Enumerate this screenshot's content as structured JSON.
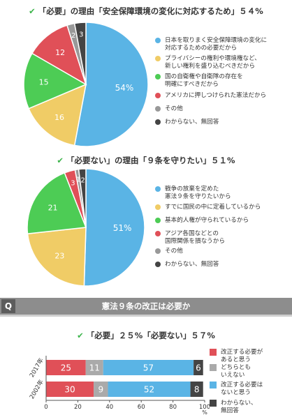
{
  "pie1": {
    "title": "「必要」の理由「安全保障環境の変化に対応するため」５４%",
    "legend": [
      {
        "label": "日本を取りまく安全保障環境の変化に\n対応するための必要だから",
        "color": "#5ab4e5"
      },
      {
        "label": "プライバシーの権利や環境権など、\n新しい権利を盛り込むべきだから",
        "color": "#f0cc66"
      },
      {
        "label": "国の自衛権や自衛隊の存在を\n明確にすべきだから",
        "color": "#4dcc55"
      },
      {
        "label": "アメリカに押しつけられた憲法だから",
        "color": "#e05058"
      },
      {
        "label": "その他",
        "color": "#999999"
      },
      {
        "label": "わからない、無回答",
        "color": "#444444"
      }
    ]
  },
  "pie2": {
    "title": "「必要ない」の理由「９条を守りたい」５１%",
    "legend": [
      {
        "label": "戦争の放棄を定めた\n憲法９条を守りたいから",
        "color": "#5ab4e5"
      },
      {
        "label": "すでに国民の中に定着しているから",
        "color": "#f0cc66"
      },
      {
        "label": "基本的人権が守られているから",
        "color": "#4dcc55"
      },
      {
        "label": "アジア各国などとの\n国際関係を損なうから",
        "color": "#e05058"
      },
      {
        "label": "その他",
        "color": "#999999"
      },
      {
        "label": "わからない、無回答",
        "color": "#444444"
      }
    ]
  },
  "question": {
    "badge": "Q",
    "text": "憲法９条の改正は必要か"
  },
  "bars": {
    "title": "「必要」２５%「必要ない」５７%",
    "x_unit": "%",
    "legend": [
      {
        "label": "改正する必要が\nあると思う",
        "color": "#e05058"
      },
      {
        "label": "どちらとも\nいえない",
        "color": "#aaaaaa"
      },
      {
        "label": "改正する必要は\nないと思う",
        "color": "#5ab4e5"
      },
      {
        "label": "わからない、\n無回答",
        "color": "#444444"
      }
    ]
  },
  "chart_data": [
    {
      "type": "pie",
      "title": "「必要」の理由「安全保障環境の変化に対応するため」５４%",
      "slice_labels": [
        "54%",
        "16",
        "15",
        "12",
        "2",
        "3"
      ],
      "values": [
        54,
        16,
        15,
        12,
        2,
        3
      ],
      "colors": [
        "#5ab4e5",
        "#f0cc66",
        "#4dcc55",
        "#e05058",
        "#999999",
        "#444444"
      ],
      "categories": [
        "日本を取りまく安全保障環境の変化に対応するための必要だから",
        "プライバシーの権利や環境権など、新しい権利を盛り込むべきだから",
        "国の自衛権や自衛隊の存在を明確にすべきだから",
        "アメリカに押しつけられた憲法だから",
        "その他",
        "わからない、無回答"
      ]
    },
    {
      "type": "pie",
      "title": "「必要ない」の理由「９条を守りたい」５１%",
      "slice_labels": [
        "51%",
        "23",
        "21",
        "3",
        "1",
        "2"
      ],
      "values": [
        51,
        23,
        21,
        3,
        1,
        2
      ],
      "colors": [
        "#5ab4e5",
        "#f0cc66",
        "#4dcc55",
        "#e05058",
        "#999999",
        "#444444"
      ],
      "categories": [
        "戦争の放棄を定めた憲法９条を守りたいから",
        "すでに国民の中に定着しているから",
        "基本的人権が守られているから",
        "アジア各国などとの国際関係を損なうから",
        "その他",
        "わからない、無回答"
      ]
    },
    {
      "type": "bar",
      "orientation": "horizontal-stacked",
      "title": "「必要」２５%「必要ない」５７%",
      "categories": [
        "2017年",
        "2002年"
      ],
      "series": [
        {
          "name": "改正する必要があると思う",
          "values": [
            25,
            30
          ],
          "color": "#e05058"
        },
        {
          "name": "どちらともいえない",
          "values": [
            11,
            9
          ],
          "color": "#aaaaaa"
        },
        {
          "name": "改正する必要はないと思う",
          "values": [
            57,
            52
          ],
          "color": "#5ab4e5"
        },
        {
          "name": "わからない、無回答",
          "values": [
            6,
            8
          ],
          "color": "#444444"
        }
      ],
      "xlim": [
        0,
        100
      ],
      "xticks": [
        "0",
        "20",
        "40",
        "60",
        "80",
        "100"
      ],
      "xunit": "%"
    }
  ]
}
